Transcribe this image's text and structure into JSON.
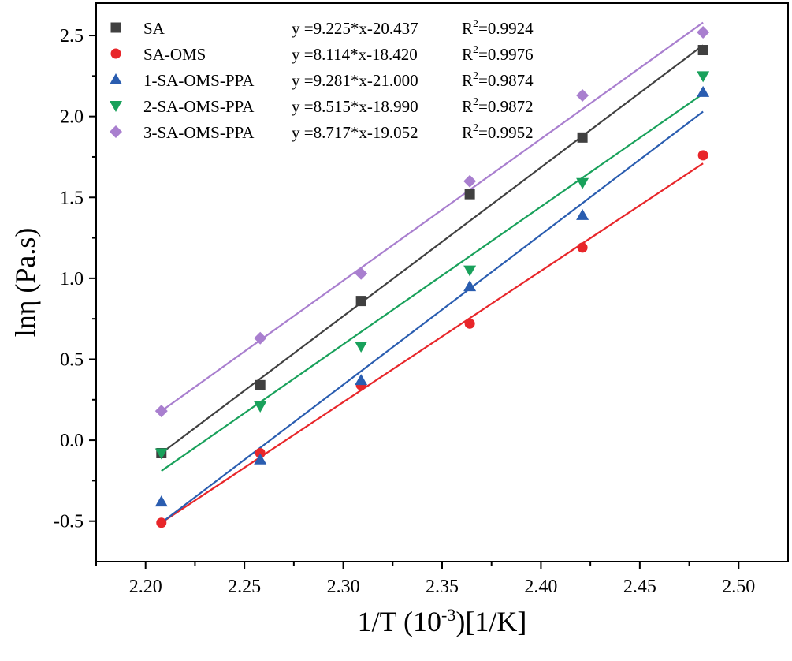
{
  "chart_data": {
    "type": "scatter",
    "title": "",
    "xlabel": {
      "main": "1/T (10",
      "sup": "-3",
      "tail": ")[1/K]"
    },
    "ylabel": "lnη (Pa.s)",
    "xlim": [
      2.175,
      2.525
    ],
    "ylim": [
      -0.75,
      2.7
    ],
    "xticks": [
      2.2,
      2.25,
      2.3,
      2.35,
      2.4,
      2.45,
      2.5
    ],
    "xtick_labels": [
      "2.20",
      "2.25",
      "2.30",
      "2.35",
      "2.40",
      "2.45",
      "2.50"
    ],
    "yticks": [
      -0.5,
      0.0,
      0.5,
      1.0,
      1.5,
      2.0,
      2.5
    ],
    "ytick_labels": [
      "-0.5",
      "0.0",
      "0.5",
      "1.0",
      "1.5",
      "2.0",
      "2.5"
    ],
    "x": [
      2.208,
      2.258,
      2.309,
      2.364,
      2.421,
      2.482
    ],
    "fit_x": [
      2.208,
      2.482
    ],
    "legend_position": "top-left",
    "series": [
      {
        "name": "SA",
        "marker": "square",
        "color": "#404040",
        "values": [
          -0.08,
          0.34,
          0.86,
          1.52,
          1.87,
          2.41
        ],
        "fit": [
          -0.08,
          2.44
        ],
        "equation": "y =9.225*x-20.437",
        "r2_label": "R",
        "r2_sup": "2",
        "r2_value": "=0.9924"
      },
      {
        "name": "SA-OMS",
        "marker": "circle",
        "color": "#e8262a",
        "values": [
          -0.51,
          -0.08,
          0.34,
          0.72,
          1.19,
          1.76
        ],
        "fit": [
          -0.51,
          1.71
        ],
        "equation": "y =8.114*x-18.420",
        "r2_label": "R",
        "r2_sup": "2",
        "r2_value": "=0.9976"
      },
      {
        "name": "1-SA-OMS-PPA",
        "marker": "triangle-up",
        "color": "#2a5db0",
        "values": [
          -0.38,
          -0.12,
          0.37,
          0.95,
          1.39,
          2.15
        ],
        "fit": [
          -0.51,
          2.03
        ],
        "equation": "y =9.281*x-21.000",
        "r2_label": "R",
        "r2_sup": "2",
        "r2_value": "=0.9874"
      },
      {
        "name": "2-SA-OMS-PPA",
        "marker": "triangle-down",
        "color": "#19a15b",
        "values": [
          -0.08,
          0.21,
          0.58,
          1.05,
          1.59,
          2.25
        ],
        "fit": [
          -0.19,
          2.14
        ],
        "equation": "y =8.515*x-18.990",
        "r2_label": "R",
        "r2_sup": "2",
        "r2_value": "=0.9872"
      },
      {
        "name": "3-SA-OMS-PPA",
        "marker": "diamond",
        "color": "#a97fcf",
        "values": [
          0.18,
          0.63,
          1.03,
          1.6,
          2.13,
          2.52
        ],
        "fit": [
          0.18,
          2.58
        ],
        "equation": "y =8.717*x-19.052",
        "r2_label": "R",
        "r2_sup": "2",
        "r2_value": "=0.9952"
      }
    ]
  }
}
